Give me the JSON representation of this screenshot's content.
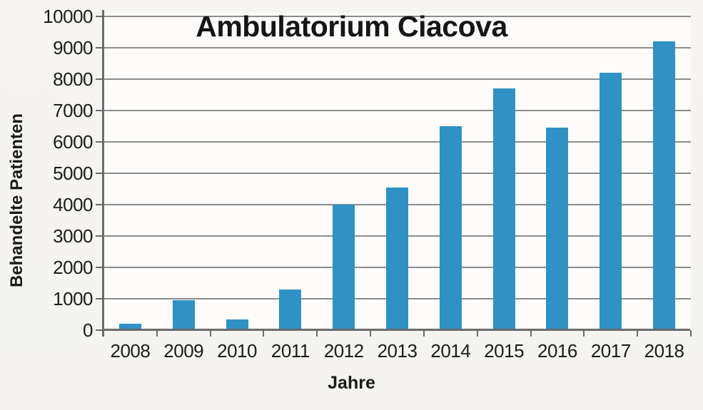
{
  "chart_data": {
    "type": "bar",
    "title": "Ambulatorium Ciacova",
    "xlabel": "Jahre",
    "ylabel": "Behandelte Patienten",
    "categories": [
      "2008",
      "2009",
      "2010",
      "2011",
      "2012",
      "2013",
      "2014",
      "2015",
      "2016",
      "2017",
      "2018"
    ],
    "values": [
      200,
      950,
      350,
      1300,
      4000,
      4550,
      6500,
      7700,
      6450,
      8200,
      9200
    ],
    "ylim": [
      0,
      10000
    ],
    "ytick_step": 1000,
    "y_tick_labels": [
      "0",
      "1000",
      "2000",
      "3000",
      "4000",
      "5000",
      "6000",
      "7000",
      "8000",
      "9000",
      "10000"
    ],
    "grid": "horizontal",
    "legend": "none"
  },
  "colors": {
    "bar": "#3092c4",
    "gridline": "#8c8c8c",
    "axis": "#6b6b6b",
    "background": "#f5f4f1",
    "plot_background": "#fdfcfa",
    "text": "#1c1c1c"
  }
}
